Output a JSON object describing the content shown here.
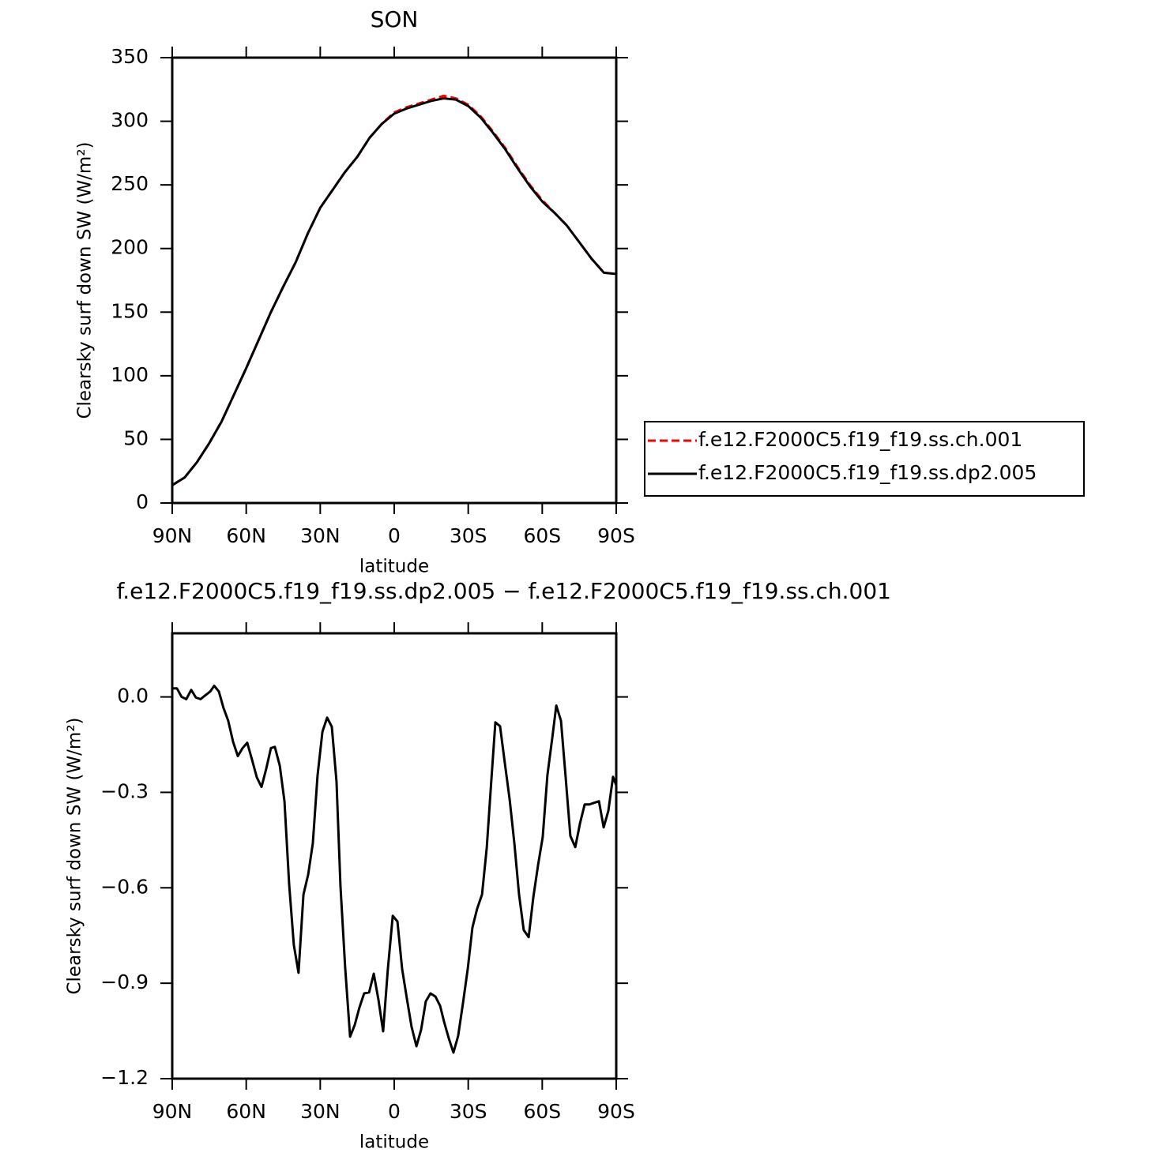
{
  "chart_data": [
    {
      "type": "line",
      "title": "SON",
      "x_label": "latitude",
      "y_label": "Clearsky surf down SW (W/m²)",
      "x": [
        90,
        85,
        80,
        75,
        70,
        65,
        60,
        55,
        50,
        45,
        40,
        35,
        30,
        25,
        20,
        15,
        10,
        5,
        0,
        -5,
        -10,
        -15,
        -20,
        -25,
        -30,
        -35,
        -40,
        -45,
        -50,
        -55,
        -60,
        -65,
        -70,
        -75,
        -80,
        -85,
        -90
      ],
      "series": [
        {
          "name": "f.e12.F2000C5.f19_f19.ss.ch.001",
          "color": "#ff0000",
          "style": "dashed",
          "values": [
            14,
            20,
            32,
            47,
            64,
            85,
            106,
            128,
            150,
            170,
            189,
            212,
            232,
            246,
            260,
            272,
            287,
            298,
            307,
            311,
            314,
            317,
            320,
            318,
            313,
            304,
            292,
            279,
            264,
            250,
            238,
            228,
            218,
            205,
            192,
            181,
            180
          ]
        },
        {
          "name": "f.e12.F2000C5.f19_f19.ss.dp2.005",
          "color": "#000000",
          "style": "solid",
          "values": [
            14,
            20,
            32,
            47,
            64,
            85,
            106,
            128,
            150,
            170,
            189,
            212,
            232,
            246,
            260,
            272,
            287,
            298,
            306,
            310,
            313,
            316,
            318,
            317,
            312,
            303,
            291,
            278,
            263,
            249,
            237,
            228,
            218,
            205,
            192,
            181,
            180
          ]
        }
      ],
      "xlim": [
        90,
        -90
      ],
      "xticks": [
        {
          "value": 90,
          "label": "90N"
        },
        {
          "value": 60,
          "label": "60N"
        },
        {
          "value": 30,
          "label": "30N"
        },
        0,
        {
          "value": -30,
          "label": "30S"
        },
        {
          "value": -60,
          "label": "60S"
        },
        {
          "value": -90,
          "label": "90S"
        }
      ],
      "ylim": [
        0,
        350
      ],
      "yticks": [
        0,
        50,
        100,
        150,
        200,
        250,
        300,
        350
      ],
      "legend": "right"
    },
    {
      "type": "line",
      "title": "f.e12.F2000C5.f19_f19.ss.dp2.005 − f.e12.F2000C5.f19_f19.ss.ch.001",
      "x_label": "latitude",
      "y_label": "Clearsky surf down SW (W/m²)",
      "x": [
        90,
        88.1,
        86.2,
        84.3,
        82.3,
        80.4,
        78.5,
        76.6,
        74.6,
        73.0,
        71.1,
        69.2,
        67.3,
        65.3,
        63.4,
        61.5,
        59.6,
        57.7,
        55.7,
        53.8,
        51.9,
        50.0,
        48.4,
        46.4,
        44.5,
        42.6,
        40.7,
        38.8,
        36.8,
        34.9,
        33.0,
        31.1,
        29.1,
        27.2,
        25.3,
        23.4,
        21.8,
        19.9,
        17.9,
        16.0,
        14.1,
        12.2,
        10.2,
        8.3,
        6.4,
        4.5,
        2.6,
        0.6,
        -1.3,
        -3.2,
        -5.1,
        -7.0,
        -9.0,
        -10.9,
        -12.8,
        -14.7,
        -16.7,
        -18.6,
        -20.2,
        -22.1,
        -24.0,
        -25.9,
        -27.9,
        -29.8,
        -31.7,
        -33.6,
        -35.6,
        -37.5,
        -39.4,
        -41.0,
        -42.9,
        -44.8,
        -46.8,
        -48.7,
        -50.6,
        -52.5,
        -54.5,
        -56.4,
        -58.3,
        -60.2,
        -62.1,
        -64.1,
        -65.7,
        -67.6,
        -69.5,
        -71.4,
        -73.4,
        -75.3,
        -77.2,
        -79.1,
        -81.0,
        -83.0,
        -84.9,
        -86.8,
        -88.7,
        -90
      ],
      "series": [
        {
          "name": "f.e12.F2000C5.f19_f19.ss.dp2.005 − f.e12.F2000C5.f19_f19.ss.ch.001",
          "color": "#000000",
          "style": "solid",
          "values": [
            0.027,
            0.027,
            0.0,
            -0.007,
            0.022,
            -0.002,
            -0.007,
            0.005,
            0.017,
            0.035,
            0.017,
            -0.035,
            -0.075,
            -0.142,
            -0.186,
            -0.161,
            -0.144,
            -0.196,
            -0.253,
            -0.283,
            -0.226,
            -0.161,
            -0.157,
            -0.216,
            -0.328,
            -0.589,
            -0.78,
            -0.867,
            -0.621,
            -0.559,
            -0.46,
            -0.248,
            -0.109,
            -0.065,
            -0.094,
            -0.266,
            -0.594,
            -0.85,
            -1.068,
            -1.031,
            -0.976,
            -0.932,
            -0.929,
            -0.87,
            -0.952,
            -1.051,
            -0.857,
            -0.688,
            -0.706,
            -0.855,
            -0.947,
            -1.036,
            -1.098,
            -1.046,
            -0.957,
            -0.932,
            -0.942,
            -0.971,
            -1.021,
            -1.073,
            -1.118,
            -1.066,
            -0.961,
            -0.855,
            -0.725,
            -0.666,
            -0.621,
            -0.475,
            -0.258,
            -0.08,
            -0.092,
            -0.206,
            -0.323,
            -0.46,
            -0.621,
            -0.733,
            -0.755,
            -0.629,
            -0.529,
            -0.44,
            -0.246,
            -0.127,
            -0.027,
            -0.075,
            -0.253,
            -0.437,
            -0.472,
            -0.398,
            -0.338,
            -0.338,
            -0.333,
            -0.328,
            -0.41,
            -0.358,
            -0.251,
            -0.278
          ]
        }
      ],
      "xlim": [
        90,
        -90
      ],
      "xticks": [
        {
          "value": 90,
          "label": "90N"
        },
        {
          "value": 60,
          "label": "60N"
        },
        {
          "value": 30,
          "label": "30N"
        },
        0,
        {
          "value": -30,
          "label": "30S"
        },
        {
          "value": -60,
          "label": "60S"
        },
        {
          "value": -90,
          "label": "90S"
        }
      ],
      "ylim": [
        -1.2,
        0.2
      ],
      "yticks": [
        {
          "value": -1.2,
          "label": "−1.2"
        },
        {
          "value": -0.9,
          "label": "−0.9"
        },
        {
          "value": -0.6,
          "label": "−0.6"
        },
        {
          "value": -0.3,
          "label": "−0.3"
        },
        {
          "value": 0,
          "label": "0.0"
        }
      ]
    }
  ]
}
